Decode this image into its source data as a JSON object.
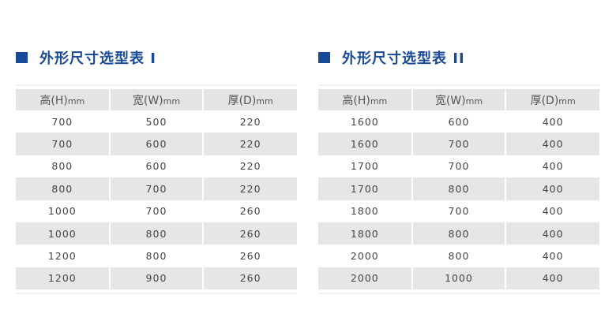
{
  "colors": {
    "accent": "#1a4a96",
    "row_alt": "#e6e6e6"
  },
  "tables": [
    {
      "title": "外形尺寸选型表 I",
      "headers": [
        [
          "高(H)",
          "mm"
        ],
        [
          "宽(W)",
          "mm"
        ],
        [
          "厚(D)",
          "mm"
        ]
      ],
      "rows": [
        [
          "700",
          "500",
          "220"
        ],
        [
          "700",
          "600",
          "220"
        ],
        [
          "800",
          "600",
          "220"
        ],
        [
          "800",
          "700",
          "220"
        ],
        [
          "1000",
          "700",
          "260"
        ],
        [
          "1000",
          "800",
          "260"
        ],
        [
          "1200",
          "800",
          "260"
        ],
        [
          "1200",
          "900",
          "260"
        ]
      ]
    },
    {
      "title": "外形尺寸选型表 II",
      "headers": [
        [
          "高(H)",
          "mm"
        ],
        [
          "宽(W)",
          "mm"
        ],
        [
          "厚(D)",
          "mm"
        ]
      ],
      "rows": [
        [
          "1600",
          "600",
          "400"
        ],
        [
          "1600",
          "700",
          "400"
        ],
        [
          "1700",
          "700",
          "400"
        ],
        [
          "1700",
          "800",
          "400"
        ],
        [
          "1800",
          "700",
          "400"
        ],
        [
          "1800",
          "800",
          "400"
        ],
        [
          "2000",
          "800",
          "400"
        ],
        [
          "2000",
          "1000",
          "400"
        ]
      ]
    }
  ]
}
